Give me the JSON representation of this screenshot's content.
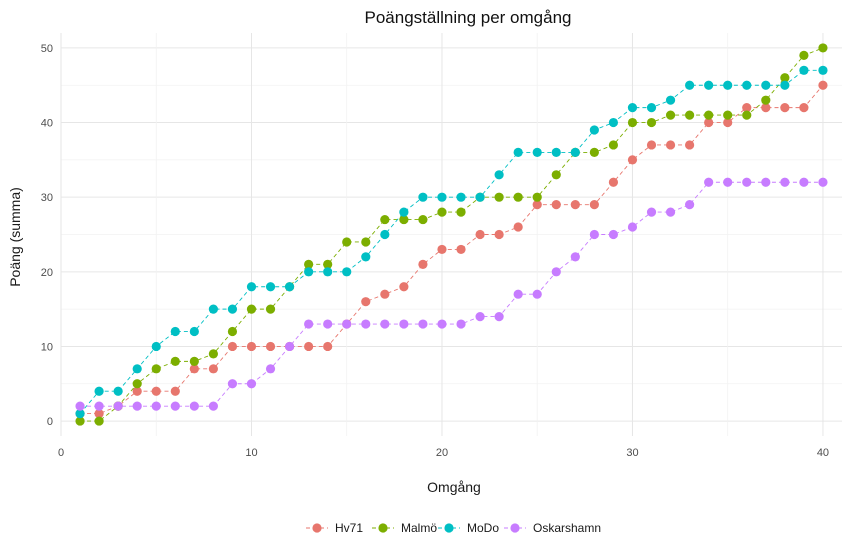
{
  "chart_data": {
    "type": "line",
    "title": "Poängställning per omgång",
    "xlabel": "Omgång",
    "ylabel": "Poäng (summa)",
    "xlim": [
      0,
      41
    ],
    "ylim": [
      -2,
      52
    ],
    "x_ticks": [
      0,
      10,
      20,
      30,
      40
    ],
    "y_ticks": [
      0,
      10,
      20,
      30,
      40,
      50
    ],
    "x_tick_labels": [
      "0",
      "10",
      "20",
      "30",
      "40"
    ],
    "y_tick_labels": [
      "0",
      "10",
      "20",
      "30",
      "40",
      "50"
    ],
    "legend_position": "bottom",
    "line_style": "dashed",
    "x": [
      1,
      2,
      3,
      4,
      5,
      6,
      7,
      8,
      9,
      10,
      11,
      12,
      13,
      14,
      15,
      16,
      17,
      18,
      19,
      20,
      21,
      22,
      23,
      24,
      25,
      26,
      27,
      28,
      29,
      30,
      31,
      32,
      33,
      34,
      35,
      36,
      37,
      38,
      39,
      40
    ],
    "series": [
      {
        "name": "Hv71",
        "color": "#E7766D",
        "values": [
          1,
          1,
          2,
          4,
          4,
          4,
          7,
          7,
          10,
          10,
          10,
          10,
          10,
          10,
          13,
          16,
          17,
          18,
          21,
          23,
          23,
          25,
          25,
          26,
          29,
          29,
          29,
          29,
          32,
          35,
          37,
          37,
          37,
          40,
          40,
          42,
          42,
          42,
          42,
          45
        ]
      },
      {
        "name": "Malmö",
        "color": "#7CAE00",
        "values": [
          0,
          0,
          2,
          5,
          7,
          8,
          8,
          9,
          12,
          15,
          15,
          18,
          21,
          21,
          24,
          24,
          27,
          27,
          27,
          28,
          28,
          30,
          30,
          30,
          30,
          33,
          36,
          36,
          37,
          40,
          40,
          41,
          41,
          41,
          41,
          41,
          43,
          46,
          49,
          50
        ]
      },
      {
        "name": "MoDo",
        "color": "#00BFC4",
        "values": [
          1,
          4,
          4,
          7,
          10,
          12,
          12,
          15,
          15,
          18,
          18,
          18,
          20,
          20,
          20,
          22,
          25,
          28,
          30,
          30,
          30,
          30,
          33,
          36,
          36,
          36,
          36,
          39,
          40,
          42,
          42,
          43,
          45,
          45,
          45,
          45,
          45,
          45,
          47,
          47
        ]
      },
      {
        "name": "Oskarshamn",
        "color": "#C77CFF",
        "values": [
          2,
          2,
          2,
          2,
          2,
          2,
          2,
          2,
          5,
          5,
          7,
          10,
          13,
          13,
          13,
          13,
          13,
          13,
          13,
          13,
          13,
          14,
          14,
          17,
          17,
          20,
          22,
          25,
          25,
          26,
          28,
          28,
          29,
          32,
          32,
          32,
          32,
          32,
          32,
          32
        ]
      }
    ]
  }
}
